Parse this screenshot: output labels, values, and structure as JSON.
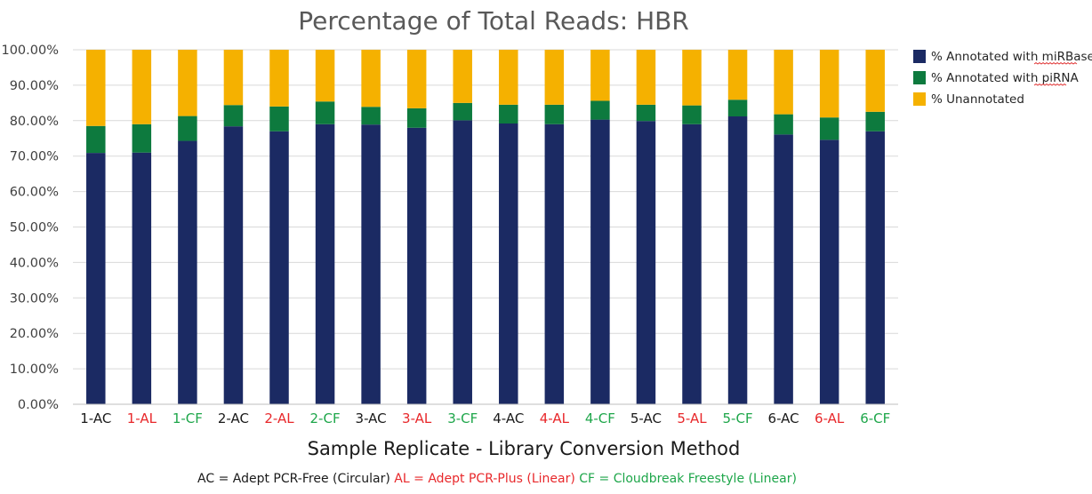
{
  "chart_data": {
    "type": "bar",
    "stacked": true,
    "title": "Percentage of Total Reads: HBR",
    "xlabel": "Sample Replicate - Library Conversion Method",
    "ylabel": "",
    "ylim": [
      0,
      100
    ],
    "yticks": [
      "0.00%",
      "10.00%",
      "20.00%",
      "30.00%",
      "40.00%",
      "50.00%",
      "60.00%",
      "70.00%",
      "80.00%",
      "90.00%",
      "100.00%"
    ],
    "grid": true,
    "legend_position": "right",
    "categories": [
      "1-AC",
      "1-AL",
      "1-CF",
      "2-AC",
      "2-AL",
      "2-CF",
      "3-AC",
      "3-AL",
      "3-CF",
      "4-AC",
      "4-AL",
      "4-CF",
      "5-AC",
      "5-AL",
      "5-CF",
      "6-AC",
      "6-AL",
      "6-CF"
    ],
    "category_methods": [
      "AC",
      "AL",
      "CF",
      "AC",
      "AL",
      "CF",
      "AC",
      "AL",
      "CF",
      "AC",
      "AL",
      "CF",
      "AC",
      "AL",
      "CF",
      "AC",
      "AL",
      "CF"
    ],
    "series": [
      {
        "name": "% Annotated with miRBase",
        "color": "#1b2a63",
        "values": [
          70.9,
          71.0,
          74.3,
          78.4,
          77.0,
          79.0,
          78.9,
          78.0,
          80.1,
          79.2,
          79.0,
          80.3,
          79.9,
          79.0,
          81.2,
          76.1,
          74.6,
          77.0
        ]
      },
      {
        "name": "% Annotated with piRNA",
        "color": "#0d7a3e",
        "values": [
          7.6,
          8.0,
          7.0,
          6.0,
          7.0,
          6.4,
          5.0,
          5.5,
          4.9,
          5.3,
          5.5,
          5.3,
          4.6,
          5.3,
          4.7,
          5.7,
          6.3,
          5.5
        ]
      },
      {
        "name": "% Unannotated",
        "color": "#f5b100",
        "values": [
          21.5,
          21.0,
          18.7,
          15.6,
          16.0,
          14.6,
          16.1,
          16.5,
          15.0,
          15.5,
          15.5,
          14.4,
          15.5,
          15.7,
          14.1,
          18.2,
          19.1,
          17.5
        ]
      }
    ]
  },
  "method_colors": {
    "AC": "#1a1a1a",
    "AL": "#e8282b",
    "CF": "#1ea64a"
  },
  "footnote": [
    {
      "text": "AC = Adept PCR-Free (Circular)",
      "method": "AC"
    },
    {
      "text": "AL = Adept PCR-Plus (Linear)",
      "method": "AL"
    },
    {
      "text": "CF = Cloudbreak Freestyle (Linear)",
      "method": "CF"
    }
  ]
}
